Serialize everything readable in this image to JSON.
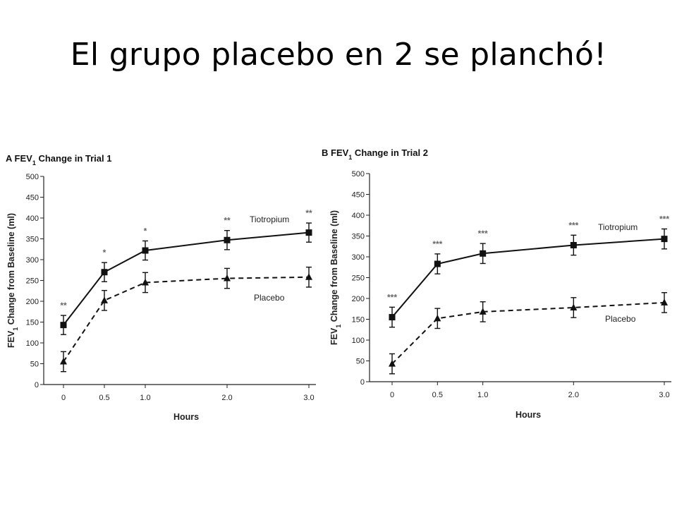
{
  "slide": {
    "title": "El grupo placebo en 2 se planchó!"
  },
  "chart_data": [
    {
      "type": "line",
      "panel_letter": "A",
      "title": "FEV1 Change in Trial 1",
      "xlabel": "Hours",
      "ylabel": "FEV1 Change from Baseline (ml)",
      "x": [
        0,
        0.5,
        1.0,
        2.0,
        3.0
      ],
      "x_tick_labels": [
        "0",
        "0.5",
        "1.0",
        "2.0",
        "3.0"
      ],
      "ylim": [
        0,
        500
      ],
      "y_ticks": [
        0,
        50,
        100,
        150,
        200,
        250,
        300,
        350,
        400,
        450,
        500
      ],
      "series": [
        {
          "name": "Tiotropium",
          "marker": "square",
          "style": "solid",
          "values": [
            143,
            270,
            322,
            347,
            365
          ],
          "error": [
            23,
            23,
            23,
            23,
            23
          ]
        },
        {
          "name": "Placebo",
          "marker": "triangle",
          "style": "dashed",
          "values": [
            55,
            202,
            245,
            255,
            258
          ],
          "error": [
            24,
            24,
            24,
            24,
            24
          ]
        }
      ],
      "significance": [
        "**",
        "*",
        "*",
        "**",
        "**"
      ]
    },
    {
      "type": "line",
      "panel_letter": "B",
      "title": "FEV1 Change in Trial 2",
      "xlabel": "Hours",
      "ylabel": "FEV1 Change from Baseline (ml)",
      "x": [
        0,
        0.5,
        1.0,
        2.0,
        3.0
      ],
      "x_tick_labels": [
        "0",
        "0.5",
        "1.0",
        "2.0",
        "3.0"
      ],
      "ylim": [
        0,
        500
      ],
      "y_ticks": [
        0,
        50,
        100,
        150,
        200,
        250,
        300,
        350,
        400,
        450,
        500
      ],
      "series": [
        {
          "name": "Tiotropium",
          "marker": "square",
          "style": "solid",
          "values": [
            155,
            283,
            308,
            328,
            343
          ],
          "error": [
            24,
            24,
            24,
            24,
            24
          ]
        },
        {
          "name": "Placebo",
          "marker": "triangle",
          "style": "dashed",
          "values": [
            43,
            152,
            168,
            178,
            190
          ],
          "error": [
            24,
            24,
            24,
            24,
            24
          ]
        }
      ],
      "significance": [
        "***",
        "***",
        "***",
        "***",
        "***"
      ]
    }
  ]
}
